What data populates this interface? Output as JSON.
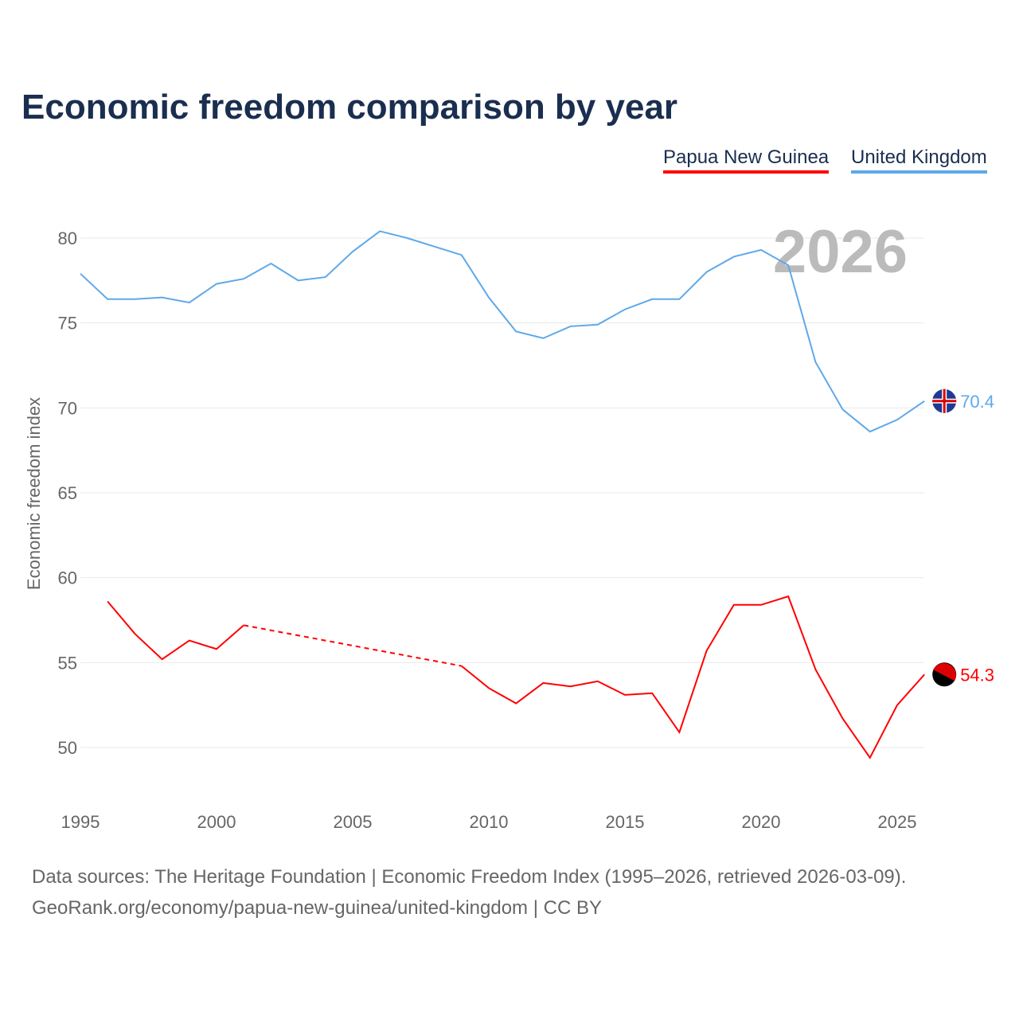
{
  "chart_data": {
    "type": "line",
    "title": "Economic freedom comparison by year",
    "ylabel": "Economic freedom index",
    "xlabel": "",
    "xlim": [
      1995,
      2026
    ],
    "ylim": [
      47.5,
      82
    ],
    "xticks": [
      1995,
      2000,
      2005,
      2010,
      2015,
      2020,
      2025
    ],
    "yticks": [
      50,
      55,
      60,
      65,
      70,
      75,
      80
    ],
    "grid": true,
    "legend_position": "top-right",
    "year_watermark": "2026",
    "series": [
      {
        "name": "Papua New Guinea",
        "color": "#ff0000",
        "end_label": "54.3",
        "x": [
          1996,
          1997,
          1998,
          1999,
          2000,
          2001,
          2009,
          2010,
          2011,
          2012,
          2013,
          2014,
          2015,
          2016,
          2017,
          2018,
          2019,
          2020,
          2021,
          2022,
          2023,
          2024,
          2025,
          2026
        ],
        "y": [
          58.6,
          56.7,
          55.2,
          56.3,
          55.8,
          57.2,
          54.8,
          53.5,
          52.6,
          53.8,
          53.6,
          53.9,
          53.1,
          53.2,
          50.9,
          55.7,
          58.4,
          58.4,
          58.9,
          54.6,
          51.7,
          49.4,
          52.5,
          54.3
        ],
        "gap_after": 2001
      },
      {
        "name": "United Kingdom",
        "color": "#5ea8ea",
        "end_label": "70.4",
        "x": [
          1995,
          1996,
          1997,
          1998,
          1999,
          2000,
          2001,
          2002,
          2003,
          2004,
          2005,
          2006,
          2007,
          2008,
          2009,
          2010,
          2011,
          2012,
          2013,
          2014,
          2015,
          2016,
          2017,
          2018,
          2019,
          2020,
          2021,
          2022,
          2023,
          2024,
          2025,
          2026
        ],
        "y": [
          77.9,
          76.4,
          76.4,
          76.5,
          76.2,
          77.3,
          77.6,
          78.5,
          77.5,
          77.7,
          79.2,
          80.4,
          80.0,
          79.5,
          79.0,
          76.5,
          74.5,
          74.1,
          74.8,
          74.9,
          75.8,
          76.4,
          76.4,
          78.0,
          78.9,
          79.3,
          78.4,
          72.7,
          69.9,
          68.6,
          69.3,
          70.4
        ]
      }
    ]
  },
  "footer": {
    "line1": "Data sources: The Heritage Foundation | Economic Freedom Index (1995–2026, retrieved 2026-03-09).",
    "line2": "GeoRank.org/economy/papua-new-guinea/united-kingdom | CC BY"
  }
}
